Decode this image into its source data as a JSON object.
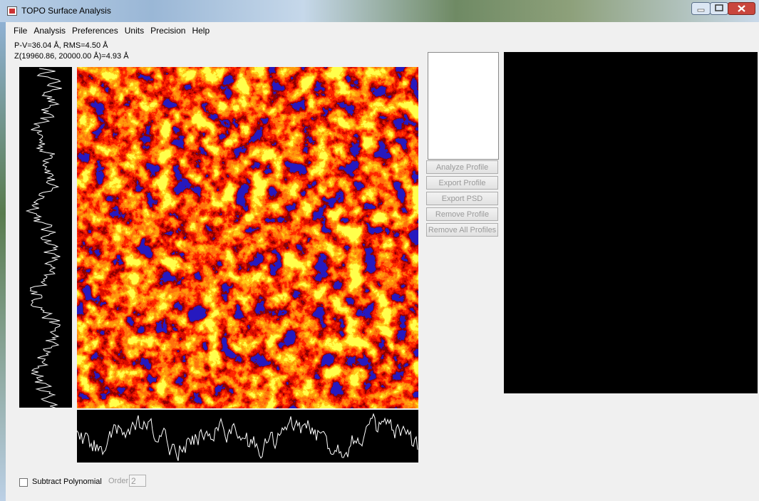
{
  "window": {
    "title": "TOPO Surface Analysis"
  },
  "menu": [
    "File",
    "Analysis",
    "Preferences",
    "Units",
    "Precision",
    "Help"
  ],
  "status": {
    "line1": "P-V=36.04 Å, RMS=4.50 Å",
    "line2": "Z(19960.86, 20000.00 Å)=4.93 Å"
  },
  "buttons": [
    "Analyze Profile",
    "Export Profile",
    "Export PSD",
    "Remove Profile",
    "Remove All Profiles"
  ],
  "options": {
    "checkbox_label": "Subtract Polynomial",
    "order_label": "Order:",
    "order_value": "2"
  }
}
